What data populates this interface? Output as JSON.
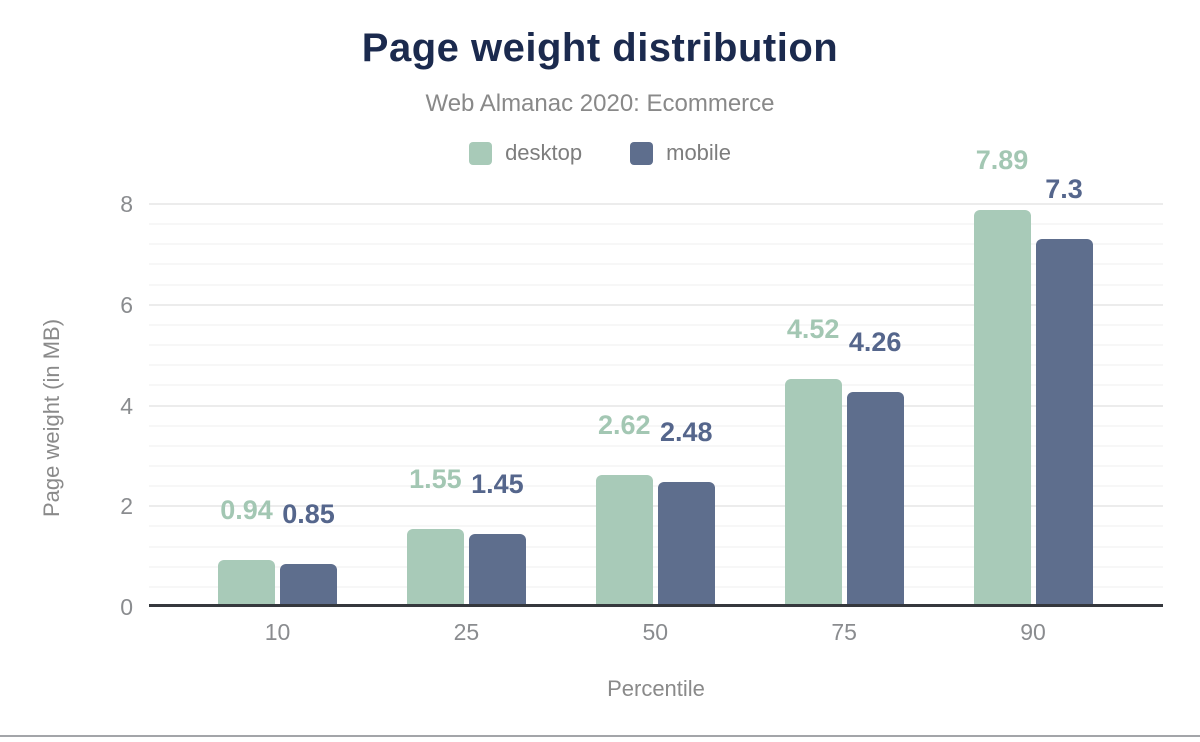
{
  "chart_data": {
    "type": "bar",
    "title": "Page weight distribution",
    "subtitle": "Web Almanac 2020: Ecommerce",
    "xlabel": "Percentile",
    "ylabel": "Page weight (in MB)",
    "categories": [
      "10",
      "25",
      "50",
      "75",
      "90"
    ],
    "series": [
      {
        "name": "desktop",
        "values": [
          0.94,
          1.55,
          2.62,
          4.52,
          7.89
        ],
        "color": "#a8cab8",
        "label_color": "#a3c7b3"
      },
      {
        "name": "mobile",
        "values": [
          0.85,
          1.45,
          2.48,
          4.26,
          7.3
        ],
        "color": "#5e6e8d",
        "label_color": "#55668c"
      }
    ],
    "ylim": [
      0,
      8
    ],
    "yticks": [
      0,
      2,
      4,
      6,
      8
    ],
    "minor_gridline_step": 0.4,
    "grid": true,
    "legend_position": "top"
  },
  "colors": {
    "title": "#1b2a4e",
    "subtitle_gray": "#898989",
    "tick_gray": "#8a8c8f",
    "axis_line": "#35383d",
    "major_gridline": "#ececec",
    "minor_gridline": "#f7f7f7",
    "bottom_rule": "#a3a5a9",
    "background": "#ffffff"
  }
}
